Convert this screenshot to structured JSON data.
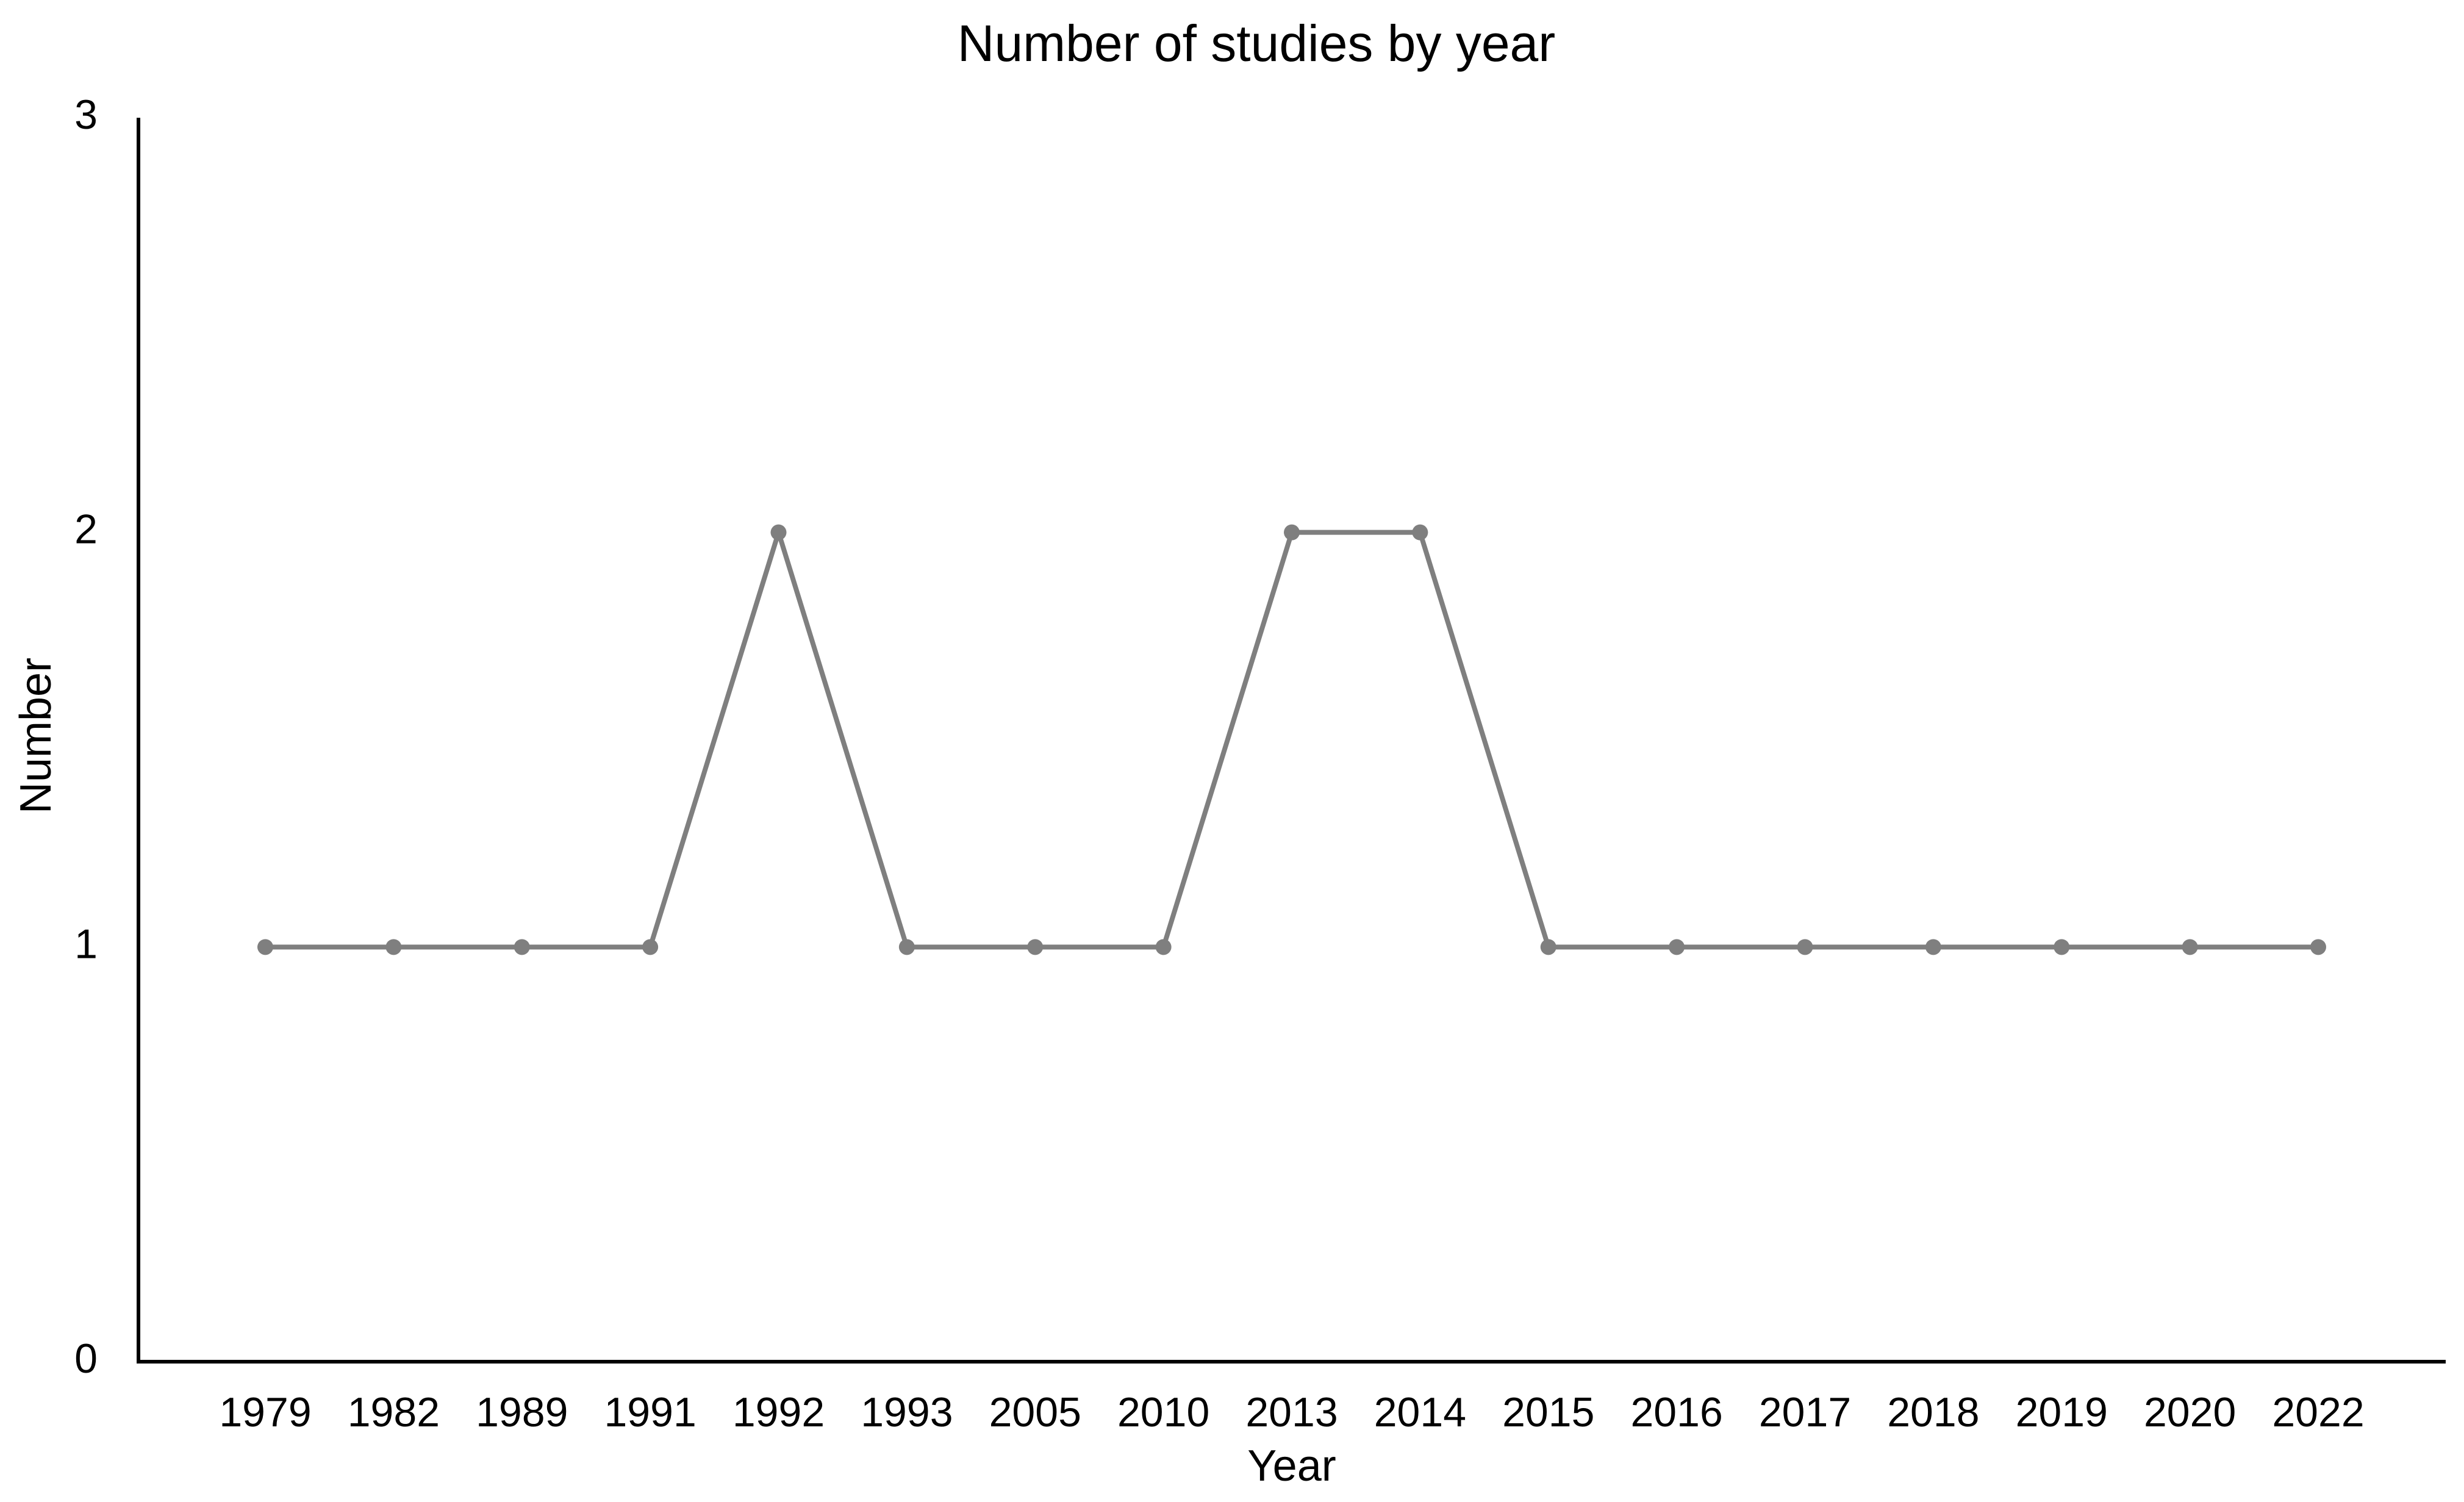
{
  "chart_data": {
    "type": "line",
    "title": "Number of studies by year",
    "x_label": "Year",
    "y_label": "Number",
    "categories": [
      "1979",
      "1982",
      "1989",
      "1991",
      "1992",
      "1993",
      "2005",
      "2010",
      "2013",
      "2014",
      "2015",
      "2016",
      "2017",
      "2018",
      "2019",
      "2020",
      "2022"
    ],
    "values": [
      1,
      1,
      1,
      1,
      2,
      1,
      1,
      1,
      2,
      2,
      1,
      1,
      1,
      1,
      1,
      1,
      1
    ],
    "color": "#7f7f7f",
    "markers": true,
    "ylim": [
      0,
      3
    ],
    "yticks": [
      0,
      1,
      2,
      3
    ],
    "grid": false
  }
}
